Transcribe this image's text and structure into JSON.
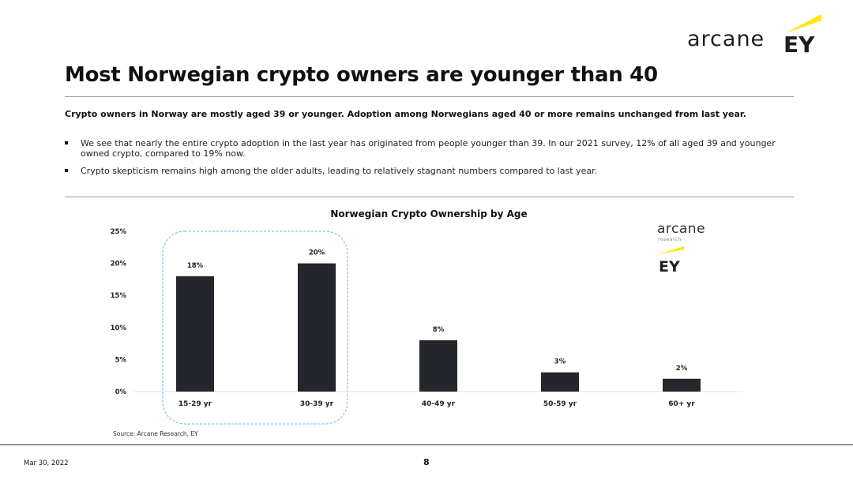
{
  "brand": {
    "logo_text": "arcane",
    "ey_text": "EY",
    "ey_color": "#ffe600",
    "chart_logo_text": "arcane",
    "chart_logo_sub": "research"
  },
  "header": {
    "title": "Most Norwegian crypto owners are younger than 40"
  },
  "content": {
    "subheading": "Crypto owners in Norway are mostly aged 39 or younger. Adoption among Norwegians aged 40 or more remains unchanged from last year.",
    "bullets": [
      "We see that nearly the entire crypto adoption in the last year has originated from people younger than 39. In our 2021 survey, 12% of all aged 39 and younger owned crypto, compared to 19% now.",
      "Crypto skepticism remains high among the older adults, leading to relatively stagnant numbers compared to last year."
    ]
  },
  "chart_data": {
    "type": "bar",
    "title": "Norwegian Crypto Ownership by Age",
    "categories": [
      "15-29 yr",
      "30-39 yr",
      "40-49 yr",
      "50-59 yr",
      "60+ yr"
    ],
    "values": [
      18,
      20,
      8,
      3,
      2
    ],
    "data_labels": [
      "18%",
      "20%",
      "8%",
      "3%",
      "2%"
    ],
    "ylim": [
      0,
      25
    ],
    "yticks": [
      0,
      5,
      10,
      15,
      20,
      25
    ],
    "ytick_labels": [
      "0%",
      "5%",
      "10%",
      "15%",
      "20%",
      "25%"
    ],
    "bar_color": "#23262b",
    "highlight_categories": [
      "15-29 yr",
      "30-39 yr"
    ],
    "highlight_color": "#5fb9e4",
    "grid": false,
    "source": "Source: Arcane Research, EY"
  },
  "footer": {
    "date": "Mar 30, 2022",
    "page": "8"
  }
}
